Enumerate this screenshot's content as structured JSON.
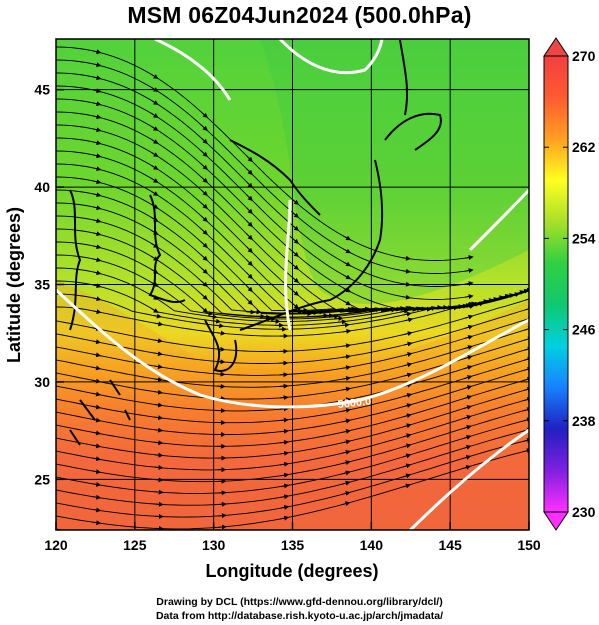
{
  "title": "MSM 06Z04Jun2024 (500.0hPa)",
  "x_axis": {
    "label": "Longitude (degrees)",
    "range": [
      120,
      150
    ],
    "ticks": [
      {
        "value": 120,
        "label": "120"
      },
      {
        "value": 125,
        "label": "125"
      },
      {
        "value": 130,
        "label": "130"
      },
      {
        "value": 135,
        "label": "135"
      },
      {
        "value": 140,
        "label": "140"
      },
      {
        "value": 145,
        "label": "145"
      },
      {
        "value": 150,
        "label": "150"
      }
    ]
  },
  "y_axis": {
    "label": "Latitude  (degrees)",
    "range": [
      22.4,
      47.6
    ],
    "ticks": [
      {
        "value": 25,
        "label": "25"
      },
      {
        "value": 30,
        "label": "30"
      },
      {
        "value": 35,
        "label": "35"
      },
      {
        "value": 40,
        "label": "40"
      },
      {
        "value": 45,
        "label": "45"
      }
    ]
  },
  "colorbar": {
    "range": [
      230,
      270
    ],
    "ticks": [
      {
        "value": 230,
        "label": "230"
      },
      {
        "value": 238,
        "label": "238"
      },
      {
        "value": 246,
        "label": "246"
      },
      {
        "value": 254,
        "label": "254"
      },
      {
        "value": 262,
        "label": "262"
      },
      {
        "value": 270,
        "label": "270"
      }
    ],
    "stops": [
      "#ff30ff",
      "#8020e0",
      "#2020c0",
      "#1880ff",
      "#00d0e0",
      "#10c870",
      "#30d040",
      "#a8e028",
      "#ffff20",
      "#ffa020",
      "#ff5a30",
      "#f04040"
    ]
  },
  "contour_label": "5600.0",
  "credits": [
    "Drawing by DCL (https://www.gfd-dennou.org/library/dcl/)",
    "Data from http://database.rish.kyoto-u.ac.jp/arch/jmadata/"
  ]
}
